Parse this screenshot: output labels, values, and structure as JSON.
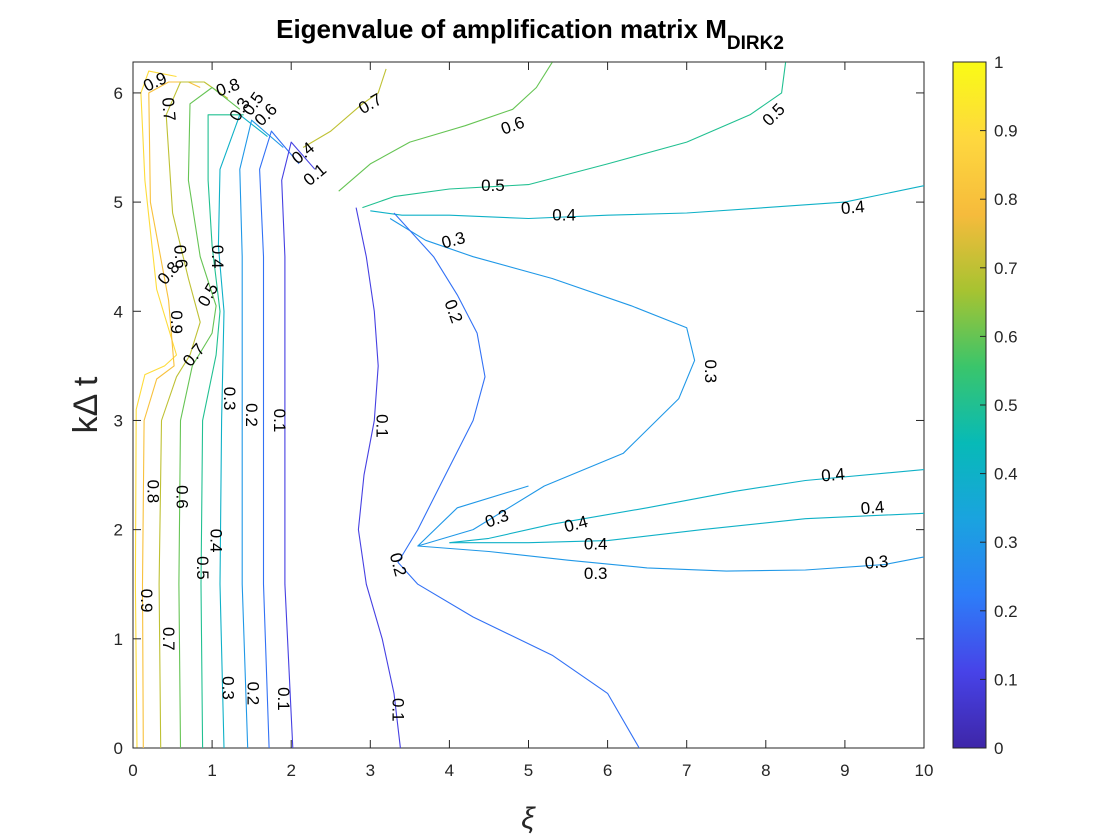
{
  "chart_data": {
    "type": "contour",
    "title": {
      "main": "Eigenvalue of amplification matrix M",
      "subscript": "DIRK2"
    },
    "xlabel": "ξ",
    "ylabel": "kΔ t",
    "xlim": [
      0,
      10
    ],
    "ylim": [
      0,
      6.2832
    ],
    "xticks": [
      0,
      1,
      2,
      3,
      4,
      5,
      6,
      7,
      8,
      9,
      10
    ],
    "yticks": [
      0,
      1,
      2,
      3,
      4,
      5,
      6
    ],
    "colorbar": {
      "range": [
        0,
        1
      ],
      "ticks": [
        0,
        0.1,
        0.2,
        0.3,
        0.4,
        0.5,
        0.6,
        0.7,
        0.8,
        0.9,
        1
      ],
      "colormap": "parula",
      "colors": [
        "#3e26a8",
        "#4743e8",
        "#2d7df8",
        "#1aa3df",
        "#07bab7",
        "#3ac56b",
        "#a7c331",
        "#f6bb3c",
        "#fed83e",
        "#f9fb15"
      ]
    },
    "grid": false,
    "legend": "colorbar-right",
    "contours": [
      {
        "level": 0.9,
        "points": [
          [
            0.05,
            0
          ],
          [
            0.03,
            1.5
          ],
          [
            0.04,
            3.1
          ],
          [
            0.15,
            3.42
          ],
          [
            0.4,
            3.5
          ],
          [
            0.55,
            3.6
          ],
          [
            0.3,
            4.2
          ],
          [
            0.15,
            5.2
          ],
          [
            0.1,
            6.0
          ],
          [
            0.2,
            6.2
          ],
          [
            0.55,
            6.15
          ]
        ]
      },
      {
        "level": 0.8,
        "points": [
          [
            0.13,
            0
          ],
          [
            0.12,
            1.5
          ],
          [
            0.14,
            3.0
          ],
          [
            0.3,
            3.38
          ],
          [
            0.52,
            3.5
          ],
          [
            0.45,
            4.1
          ],
          [
            0.22,
            5.0
          ],
          [
            0.2,
            6.0
          ],
          [
            0.45,
            6.1
          ],
          [
            0.7,
            6.1
          ],
          [
            0.85,
            6.05
          ]
        ]
      },
      {
        "level": 0.7,
        "points": [
          [
            0.35,
            0
          ],
          [
            0.33,
            1.5
          ],
          [
            0.36,
            3.0
          ],
          [
            0.55,
            3.4
          ],
          [
            0.72,
            3.6
          ],
          [
            0.85,
            3.9
          ],
          [
            0.7,
            4.3
          ],
          [
            0.5,
            4.9
          ],
          [
            0.42,
            5.8
          ],
          [
            0.6,
            6.1
          ],
          [
            0.9,
            6.1
          ],
          [
            1.2,
            5.95
          ]
        ]
      },
      {
        "level": 0.6,
        "points": [
          [
            0.6,
            0
          ],
          [
            0.58,
            1.5
          ],
          [
            0.6,
            3.0
          ],
          [
            0.75,
            3.5
          ],
          [
            1.0,
            3.8
          ],
          [
            1.05,
            4.05
          ],
          [
            0.85,
            4.5
          ],
          [
            0.7,
            5.2
          ],
          [
            0.72,
            5.9
          ],
          [
            1.0,
            6.05
          ],
          [
            1.35,
            5.85
          ]
        ]
      },
      {
        "level": 0.5,
        "points": [
          [
            0.88,
            0
          ],
          [
            0.86,
            1.5
          ],
          [
            0.88,
            3.0
          ],
          [
            1.05,
            3.6
          ],
          [
            1.1,
            4.0
          ],
          [
            1.0,
            4.6
          ],
          [
            0.95,
            5.2
          ],
          [
            0.95,
            5.8
          ],
          [
            1.4,
            5.8
          ]
        ]
      },
      {
        "level": 0.4,
        "points": [
          [
            1.15,
            0
          ],
          [
            1.1,
            1.5
          ],
          [
            1.12,
            3.0
          ],
          [
            1.15,
            4.0
          ],
          [
            1.08,
            4.6
          ],
          [
            1.1,
            5.3
          ],
          [
            1.35,
            5.8
          ],
          [
            1.7,
            5.6
          ]
        ]
      },
      {
        "level": 0.3,
        "points": [
          [
            1.45,
            0
          ],
          [
            1.38,
            1.5
          ],
          [
            1.38,
            3.0
          ],
          [
            1.38,
            4.5
          ],
          [
            1.35,
            5.3
          ],
          [
            1.5,
            5.75
          ],
          [
            1.9,
            5.5
          ]
        ]
      },
      {
        "level": 0.2,
        "points": [
          [
            1.72,
            0
          ],
          [
            1.65,
            1.5
          ],
          [
            1.65,
            3.0
          ],
          [
            1.65,
            4.5
          ],
          [
            1.6,
            5.3
          ],
          [
            1.75,
            5.65
          ],
          [
            2.1,
            5.35
          ]
        ]
      },
      {
        "level": 0.1,
        "points": [
          [
            2.02,
            0
          ],
          [
            1.92,
            1.5
          ],
          [
            1.92,
            3.0
          ],
          [
            1.92,
            4.5
          ],
          [
            1.88,
            5.2
          ],
          [
            2.0,
            5.55
          ],
          [
            2.3,
            5.3
          ]
        ]
      },
      {
        "level": 0.7,
        "points": [
          [
            2.15,
            5.5
          ],
          [
            2.5,
            5.65
          ],
          [
            2.9,
            5.9
          ],
          [
            3.1,
            6.0
          ],
          [
            3.2,
            6.22
          ]
        ]
      },
      {
        "level": 0.6,
        "points": [
          [
            2.6,
            5.1
          ],
          [
            3.0,
            5.35
          ],
          [
            3.5,
            5.55
          ],
          [
            4.2,
            5.7
          ],
          [
            4.8,
            5.85
          ],
          [
            5.1,
            6.05
          ],
          [
            5.3,
            6.28
          ]
        ]
      },
      {
        "level": 0.5,
        "points": [
          [
            2.9,
            4.95
          ],
          [
            3.3,
            5.05
          ],
          [
            4.0,
            5.12
          ],
          [
            5.0,
            5.16
          ],
          [
            6.0,
            5.35
          ],
          [
            7.0,
            5.55
          ],
          [
            7.8,
            5.8
          ],
          [
            8.2,
            6.0
          ],
          [
            8.25,
            6.28
          ]
        ]
      },
      {
        "level": 0.4,
        "points": [
          [
            3.0,
            4.92
          ],
          [
            3.4,
            4.88
          ],
          [
            4.0,
            4.88
          ],
          [
            5.0,
            4.85
          ],
          [
            6.0,
            4.88
          ],
          [
            7.0,
            4.9
          ],
          [
            8.0,
            4.95
          ],
          [
            9.0,
            5.0
          ],
          [
            10.0,
            5.15
          ]
        ]
      },
      {
        "level": 0.3,
        "points": [
          [
            3.25,
            4.85
          ],
          [
            3.7,
            4.65
          ],
          [
            4.3,
            4.5
          ],
          [
            5.3,
            4.3
          ],
          [
            6.3,
            4.05
          ],
          [
            7.0,
            3.85
          ],
          [
            7.1,
            3.55
          ],
          [
            6.9,
            3.2
          ],
          [
            6.2,
            2.7
          ],
          [
            5.2,
            2.4
          ],
          [
            4.3,
            2.0
          ],
          [
            3.6,
            1.85
          ],
          [
            4.1,
            2.2
          ],
          [
            5.0,
            2.4
          ]
        ]
      },
      {
        "level": 0.2,
        "points": [
          [
            3.3,
            4.9
          ],
          [
            3.8,
            4.5
          ],
          [
            4.1,
            4.15
          ],
          [
            4.35,
            3.8
          ],
          [
            4.45,
            3.4
          ],
          [
            4.3,
            3.0
          ],
          [
            3.95,
            2.5
          ],
          [
            3.6,
            2.0
          ],
          [
            3.35,
            1.7
          ],
          [
            3.6,
            1.5
          ],
          [
            4.3,
            1.2
          ],
          [
            5.3,
            0.85
          ],
          [
            6.0,
            0.5
          ],
          [
            6.4,
            0
          ]
        ]
      },
      {
        "level": 0.1,
        "points": [
          [
            2.82,
            4.95
          ],
          [
            2.95,
            4.5
          ],
          [
            3.05,
            4.0
          ],
          [
            3.1,
            3.5
          ],
          [
            3.05,
            3.0
          ],
          [
            2.92,
            2.5
          ],
          [
            2.85,
            2.0
          ],
          [
            2.95,
            1.5
          ],
          [
            3.15,
            1.0
          ],
          [
            3.3,
            0.5
          ],
          [
            3.38,
            0
          ]
        ]
      },
      {
        "level": 0.4,
        "points": [
          [
            4.0,
            1.88
          ],
          [
            4.5,
            1.92
          ],
          [
            5.3,
            2.05
          ],
          [
            6.5,
            2.2
          ],
          [
            7.6,
            2.35
          ],
          [
            8.5,
            2.45
          ],
          [
            10.0,
            2.55
          ]
        ]
      },
      {
        "level": 0.4,
        "points": [
          [
            4.0,
            1.88
          ],
          [
            5.0,
            1.88
          ],
          [
            6.0,
            1.9
          ],
          [
            7.2,
            2.0
          ],
          [
            8.5,
            2.1
          ],
          [
            10.0,
            2.15
          ]
        ]
      },
      {
        "level": 0.3,
        "points": [
          [
            3.6,
            1.85
          ],
          [
            4.5,
            1.8
          ],
          [
            5.5,
            1.72
          ],
          [
            6.5,
            1.65
          ],
          [
            7.5,
            1.62
          ],
          [
            8.5,
            1.63
          ],
          [
            9.5,
            1.68
          ],
          [
            10.0,
            1.75
          ]
        ]
      }
    ],
    "contour_labels": [
      {
        "text": "0.9",
        "x": 0.28,
        "y": 6.1,
        "angle": -25
      },
      {
        "text": "0.7",
        "x": 0.45,
        "y": 5.85,
        "angle": 85
      },
      {
        "text": "0.8",
        "x": 1.2,
        "y": 6.05,
        "angle": -20
      },
      {
        "text": "0.3",
        "x": 1.35,
        "y": 5.85,
        "angle": -60
      },
      {
        "text": "0.5",
        "x": 1.52,
        "y": 5.9,
        "angle": -55
      },
      {
        "text": "0.6",
        "x": 1.68,
        "y": 5.8,
        "angle": -45
      },
      {
        "text": "0.4",
        "x": 2.15,
        "y": 5.45,
        "angle": -40
      },
      {
        "text": "0.1",
        "x": 2.3,
        "y": 5.25,
        "angle": -40
      },
      {
        "text": "0.7",
        "x": 3.0,
        "y": 5.9,
        "angle": -30
      },
      {
        "text": "0.6",
        "x": 4.8,
        "y": 5.7,
        "angle": -20
      },
      {
        "text": "0.5",
        "x": 8.1,
        "y": 5.8,
        "angle": -45
      },
      {
        "text": "0.5",
        "x": 4.55,
        "y": 5.15,
        "angle": 0
      },
      {
        "text": "0.4",
        "x": 5.45,
        "y": 4.88,
        "angle": 0
      },
      {
        "text": "0.4",
        "x": 9.1,
        "y": 4.95,
        "angle": -5
      },
      {
        "text": "0.3",
        "x": 4.05,
        "y": 4.65,
        "angle": -15
      },
      {
        "text": "0.2",
        "x": 4.05,
        "y": 4.0,
        "angle": 70
      },
      {
        "text": "0.3",
        "x": 7.3,
        "y": 3.45,
        "angle": 90
      },
      {
        "text": "0.6",
        "x": 0.6,
        "y": 4.5,
        "angle": 85
      },
      {
        "text": "0.8",
        "x": 0.45,
        "y": 4.35,
        "angle": -50
      },
      {
        "text": "0.4",
        "x": 1.07,
        "y": 4.5,
        "angle": 90
      },
      {
        "text": "0.5",
        "x": 0.95,
        "y": 4.15,
        "angle": -60
      },
      {
        "text": "0.9",
        "x": 0.55,
        "y": 3.9,
        "angle": 90
      },
      {
        "text": "0.7",
        "x": 0.77,
        "y": 3.6,
        "angle": -50
      },
      {
        "text": "0.3",
        "x": 1.22,
        "y": 3.2,
        "angle": 90
      },
      {
        "text": "0.2",
        "x": 1.5,
        "y": 3.05,
        "angle": 90
      },
      {
        "text": "0.1",
        "x": 1.85,
        "y": 3.0,
        "angle": 90
      },
      {
        "text": "0.1",
        "x": 3.15,
        "y": 2.95,
        "angle": 90
      },
      {
        "text": "0.8",
        "x": 0.25,
        "y": 2.35,
        "angle": 90
      },
      {
        "text": "0.6",
        "x": 0.62,
        "y": 2.3,
        "angle": 90
      },
      {
        "text": "0.4",
        "x": 1.05,
        "y": 1.9,
        "angle": 90
      },
      {
        "text": "0.5",
        "x": 0.88,
        "y": 1.65,
        "angle": 90
      },
      {
        "text": "0.3",
        "x": 4.6,
        "y": 2.1,
        "angle": -20
      },
      {
        "text": "0.4",
        "x": 5.6,
        "y": 2.05,
        "angle": -15
      },
      {
        "text": "0.4",
        "x": 8.85,
        "y": 2.5,
        "angle": -5
      },
      {
        "text": "0.4",
        "x": 9.35,
        "y": 2.2,
        "angle": -5
      },
      {
        "text": "0.4",
        "x": 5.85,
        "y": 1.87,
        "angle": 0
      },
      {
        "text": "0.3",
        "x": 5.85,
        "y": 1.6,
        "angle": 0
      },
      {
        "text": "0.3",
        "x": 9.4,
        "y": 1.7,
        "angle": -5
      },
      {
        "text": "0.2",
        "x": 3.35,
        "y": 1.68,
        "angle": 75
      },
      {
        "text": "0.9",
        "x": 0.17,
        "y": 1.35,
        "angle": 90
      },
      {
        "text": "0.7",
        "x": 0.45,
        "y": 1.0,
        "angle": 90
      },
      {
        "text": "0.3",
        "x": 1.2,
        "y": 0.55,
        "angle": 90
      },
      {
        "text": "0.2",
        "x": 1.52,
        "y": 0.5,
        "angle": 90
      },
      {
        "text": "0.1",
        "x": 1.9,
        "y": 0.45,
        "angle": 90
      },
      {
        "text": "0.1",
        "x": 3.35,
        "y": 0.35,
        "angle": 90
      }
    ]
  }
}
